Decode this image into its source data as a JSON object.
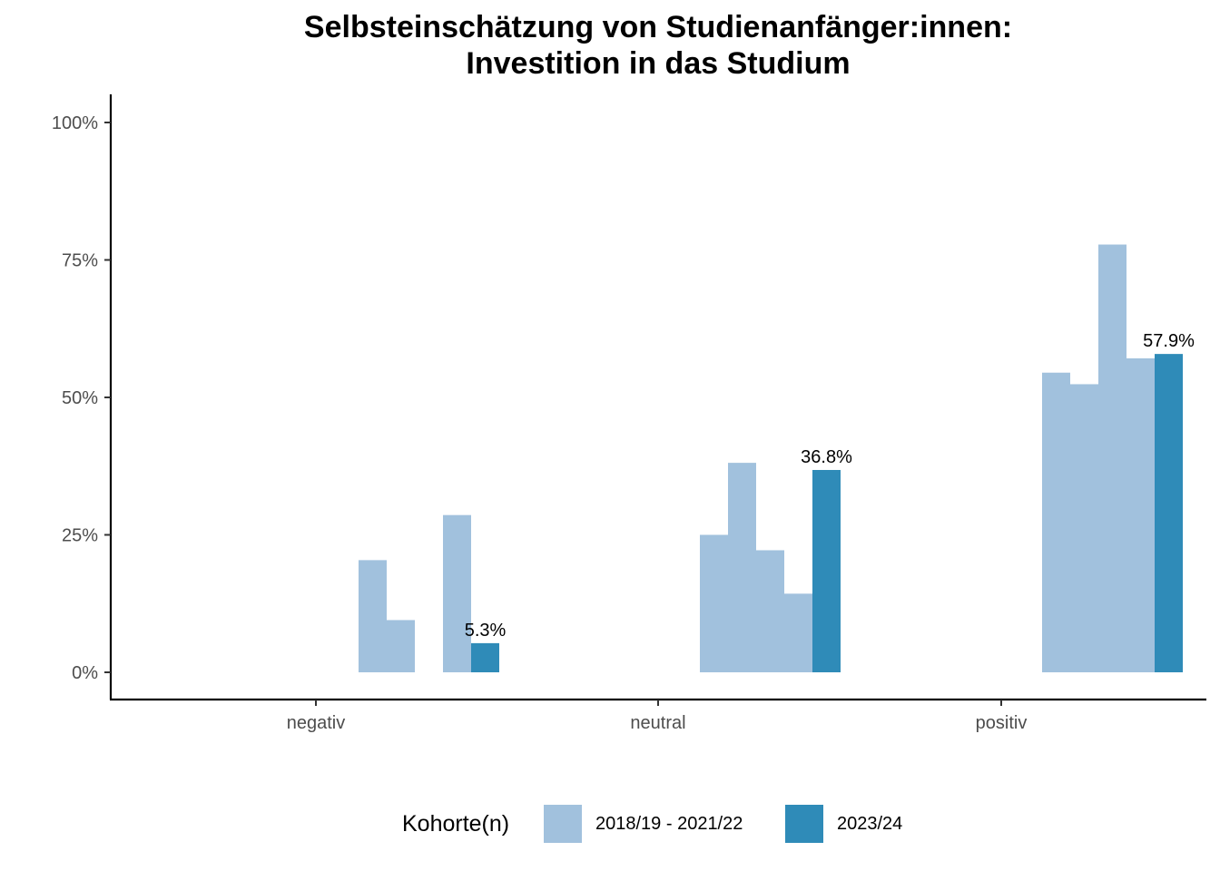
{
  "chart_data": {
    "type": "bar",
    "title": [
      "Selbsteinschätzung von Studienanfänger:innen:",
      "Investition in das Studium"
    ],
    "xlabel": "",
    "ylabel": "",
    "categories": [
      "negativ",
      "neutral",
      "positiv"
    ],
    "ylim": [
      0,
      1.05
    ],
    "yticks": [
      0,
      0.25,
      0.5,
      0.75,
      1.0
    ],
    "ytick_labels": [
      "0%",
      "25%",
      "50%",
      "75%",
      "100%"
    ],
    "colors": {
      "historical": "#a1c1dd",
      "current": "#2f8bb8"
    },
    "legend": {
      "title": "Kohorte(n)",
      "position": "bottom",
      "entries": [
        {
          "label": "2018/19 - 2021/22",
          "color": "#a1c1dd"
        },
        {
          "label": "2023/24",
          "color": "#2f8bb8"
        }
      ]
    },
    "series": [
      {
        "name": "2018/19 - 2021/22",
        "color": "#a1c1dd",
        "values": [
          [
            0.0,
            0.0,
            0.204,
            0.095,
            0.0,
            0.286
          ],
          [
            0.0,
            0.25,
            0.381,
            0.222,
            0.143
          ],
          [
            0.0,
            0.545,
            0.524,
            0.778,
            0.571
          ]
        ]
      },
      {
        "name": "2023/24",
        "color": "#2f8bb8",
        "values": [
          0.053,
          0.368,
          0.579
        ],
        "labels": [
          "5.3%",
          "36.8%",
          "57.9%"
        ]
      }
    ]
  }
}
